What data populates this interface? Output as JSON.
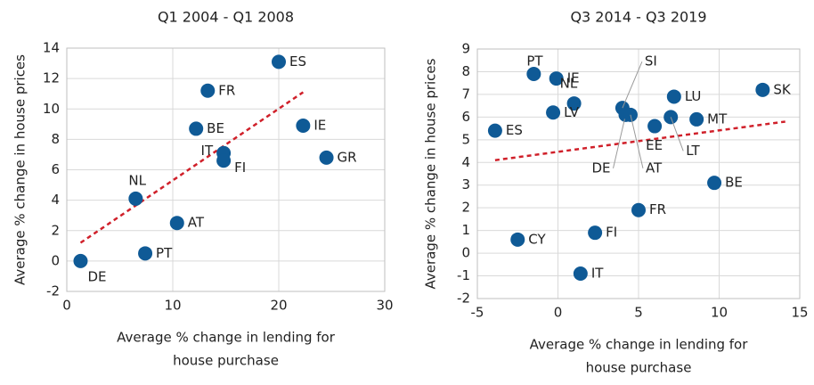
{
  "chart_data": [
    {
      "type": "scatter",
      "title": "Q1 2004 - Q1 2008",
      "xlabel": [
        "Average % change in lending for",
        "house purchase"
      ],
      "ylabel": "Average % change in house prices",
      "labels": [
        "DE",
        "PT",
        "AT",
        "NL",
        "IT",
        "FI",
        "BE",
        "FR",
        "ES",
        "IE",
        "GR"
      ],
      "x": [
        1.3,
        7.4,
        10.4,
        6.5,
        14.8,
        14.8,
        12.2,
        13.3,
        20.0,
        22.3,
        24.5
      ],
      "y": [
        0.0,
        0.5,
        2.5,
        4.1,
        7.1,
        6.6,
        8.7,
        11.2,
        13.1,
        8.9,
        6.8
      ],
      "color": "#0f5a96",
      "trendline": {
        "x": [
          1.3,
          22.3
        ],
        "y": [
          1.2,
          11.1
        ],
        "color": "#d0202a"
      },
      "xlim": [
        0,
        30
      ],
      "xticks": [
        0,
        10,
        20,
        30
      ],
      "ylim": [
        -2,
        14
      ],
      "yticks": [
        -2,
        0,
        2,
        4,
        6,
        8,
        10,
        12,
        14
      ],
      "grid": true
    },
    {
      "type": "scatter",
      "title": "Q3 2014 - Q3 2019",
      "xlabel": [
        "Average % change in lending for",
        "house purchase"
      ],
      "ylabel": "Average % change in house prices",
      "labels": [
        "PT",
        "IE",
        "NL",
        "LV",
        "ES",
        "SI",
        "DE",
        "AT",
        "EE",
        "LT",
        "LU",
        "MT",
        "SK",
        "BE",
        "FR",
        "FI",
        "CY",
        "IT"
      ],
      "x": [
        -1.5,
        -0.1,
        1.0,
        -0.3,
        -3.9,
        4.0,
        4.2,
        4.5,
        6.0,
        7.0,
        7.2,
        8.6,
        12.7,
        9.7,
        5.0,
        2.3,
        -2.5,
        1.4
      ],
      "y": [
        7.9,
        7.7,
        6.6,
        6.2,
        5.4,
        6.4,
        6.1,
        6.1,
        5.6,
        6.0,
        6.9,
        5.9,
        7.2,
        3.1,
        1.9,
        0.9,
        0.6,
        -0.9
      ],
      "color": "#0f5a96",
      "trendline": {
        "x": [
          -3.9,
          14.1
        ],
        "y": [
          4.1,
          5.8
        ],
        "color": "#d0202a"
      },
      "xlim": [
        -5,
        15
      ],
      "xticks": [
        -5,
        0,
        5,
        10,
        15
      ],
      "ylim": [
        -2,
        9
      ],
      "yticks": [
        -2,
        -1,
        0,
        1,
        2,
        3,
        4,
        5,
        6,
        7,
        8,
        9
      ],
      "grid": true
    }
  ]
}
